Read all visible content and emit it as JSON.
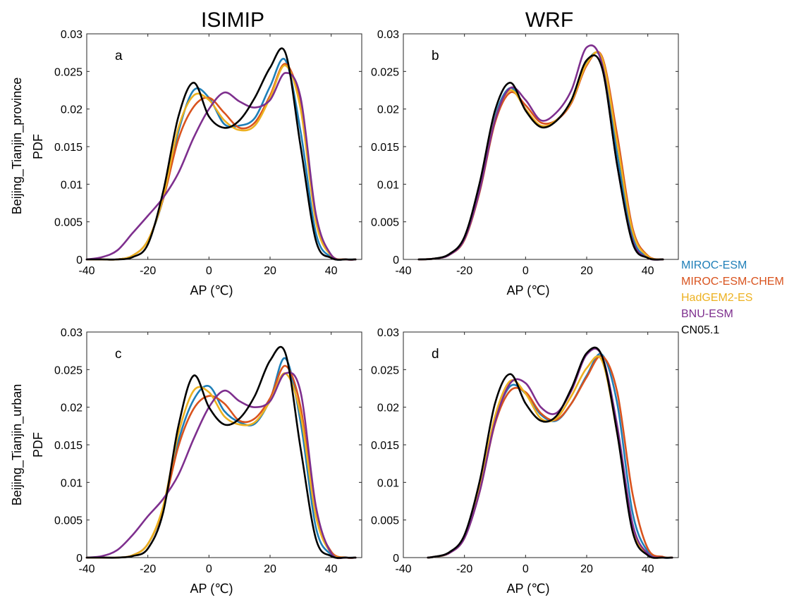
{
  "columns": [
    "ISIMIP",
    "WRF"
  ],
  "rows": [
    "Beijing_Tianjin_province",
    "Beijing_Tianjin_urban"
  ],
  "ylabel": "PDF",
  "xlabel": "AP (℃)",
  "x_ticks": [
    -40,
    -20,
    0,
    20,
    40
  ],
  "y_ticks": [
    "0",
    "0.005",
    "0.01",
    "0.015",
    "0.02",
    "0.025",
    "0.03"
  ],
  "legend": [
    {
      "name": "MIROC-ESM",
      "color": "#1f7fb8"
    },
    {
      "name": "MIROC-ESM-CHEM",
      "color": "#d9531e"
    },
    {
      "name": "HadGEM2-ES",
      "color": "#edb120"
    },
    {
      "name": "BNU-ESM",
      "color": "#7e2f8e"
    },
    {
      "name": "CN05.1",
      "color": "#000000"
    }
  ],
  "chart_data": [
    {
      "type": "line",
      "panel": "a",
      "xlim": [
        -40,
        50
      ],
      "ylim": [
        0,
        0.03
      ],
      "x": [
        -40,
        -35,
        -30,
        -25,
        -20,
        -15,
        -10,
        -5,
        0,
        5,
        10,
        15,
        20,
        25,
        30,
        35,
        40,
        45,
        48
      ],
      "series": [
        {
          "name": "MIROC-ESM",
          "color": "#1f7fb8",
          "values": [
            0,
            0,
            0,
            0.0005,
            0.0025,
            0.008,
            0.017,
            0.0225,
            0.0215,
            0.018,
            0.0178,
            0.0188,
            0.023,
            0.0265,
            0.017,
            0.0035,
            0.0003,
            0,
            0
          ]
        },
        {
          "name": "MIROC-ESM-CHEM",
          "color": "#d9531e",
          "values": [
            0,
            0,
            0,
            0.0005,
            0.0025,
            0.008,
            0.016,
            0.0203,
            0.0215,
            0.0195,
            0.0175,
            0.0182,
            0.0218,
            0.026,
            0.0205,
            0.0055,
            0.0006,
            0,
            0
          ]
        },
        {
          "name": "HadGEM2-ES",
          "color": "#edb120",
          "values": [
            0,
            0,
            0,
            0.0005,
            0.0025,
            0.0082,
            0.0175,
            0.0218,
            0.0212,
            0.0185,
            0.0172,
            0.0178,
            0.0215,
            0.0258,
            0.02,
            0.005,
            0.0005,
            0,
            0
          ]
        },
        {
          "name": "BNU-ESM",
          "color": "#7e2f8e",
          "values": [
            0,
            0.0003,
            0.0012,
            0.0035,
            0.0058,
            0.0082,
            0.0115,
            0.0162,
            0.02,
            0.0222,
            0.021,
            0.0202,
            0.0212,
            0.0248,
            0.0215,
            0.006,
            0.0006,
            0,
            0
          ]
        },
        {
          "name": "CN05.1",
          "color": "#000000",
          "values": [
            0,
            0,
            0,
            0.0003,
            0.002,
            0.009,
            0.019,
            0.0235,
            0.019,
            0.0175,
            0.0185,
            0.0215,
            0.0255,
            0.0275,
            0.015,
            0.0025,
            0.0002,
            0,
            0
          ]
        }
      ]
    },
    {
      "type": "line",
      "panel": "b",
      "xlim": [
        -40,
        50
      ],
      "ylim": [
        0,
        0.03
      ],
      "x": [
        -35,
        -30,
        -25,
        -20,
        -15,
        -10,
        -5,
        0,
        5,
        10,
        15,
        20,
        25,
        30,
        35,
        40,
        45
      ],
      "series": [
        {
          "name": "MIROC-ESM",
          "color": "#1f7fb8",
          "values": [
            0,
            0.0001,
            0.0006,
            0.0028,
            0.0095,
            0.019,
            0.0228,
            0.02,
            0.0177,
            0.0185,
            0.021,
            0.0262,
            0.0265,
            0.014,
            0.003,
            0.0003,
            0
          ]
        },
        {
          "name": "MIROC-ESM-CHEM",
          "color": "#d9531e",
          "values": [
            0,
            0.0001,
            0.0006,
            0.0026,
            0.009,
            0.0182,
            0.0222,
            0.0205,
            0.0182,
            0.0185,
            0.0208,
            0.0258,
            0.027,
            0.0165,
            0.0042,
            0.0005,
            0
          ]
        },
        {
          "name": "HadGEM2-ES",
          "color": "#edb120",
          "values": [
            0,
            0.0001,
            0.0006,
            0.0027,
            0.0092,
            0.0186,
            0.0225,
            0.02,
            0.0178,
            0.0185,
            0.021,
            0.026,
            0.0268,
            0.0155,
            0.0038,
            0.0004,
            0
          ]
        },
        {
          "name": "BNU-ESM",
          "color": "#7e2f8e",
          "values": [
            0,
            0.0001,
            0.0006,
            0.0027,
            0.0092,
            0.0185,
            0.0228,
            0.0212,
            0.0185,
            0.0195,
            0.0225,
            0.0282,
            0.026,
            0.0125,
            0.0025,
            0.0002,
            0
          ]
        },
        {
          "name": "CN05.1",
          "color": "#000000",
          "values": [
            0,
            0.0001,
            0.0007,
            0.003,
            0.0102,
            0.0198,
            0.0235,
            0.0198,
            0.0176,
            0.0184,
            0.0212,
            0.0265,
            0.0255,
            0.0125,
            0.0022,
            0.0002,
            0
          ]
        }
      ]
    },
    {
      "type": "line",
      "panel": "c",
      "xlim": [
        -40,
        50
      ],
      "ylim": [
        0,
        0.03
      ],
      "x": [
        -40,
        -35,
        -30,
        -25,
        -20,
        -15,
        -10,
        -5,
        0,
        5,
        10,
        15,
        20,
        25,
        30,
        35,
        40,
        45,
        48
      ],
      "series": [
        {
          "name": "MIROC-ESM",
          "color": "#1f7fb8",
          "values": [
            0,
            0,
            0,
            0.0003,
            0.0018,
            0.0065,
            0.0155,
            0.021,
            0.0228,
            0.0195,
            0.018,
            0.0178,
            0.021,
            0.0265,
            0.018,
            0.004,
            0.0004,
            0,
            0
          ]
        },
        {
          "name": "MIROC-ESM-CHEM",
          "color": "#d9531e",
          "values": [
            0,
            0,
            0,
            0.0003,
            0.0018,
            0.0065,
            0.0148,
            0.0198,
            0.0215,
            0.0205,
            0.0182,
            0.0185,
            0.0212,
            0.0255,
            0.02,
            0.006,
            0.0008,
            0,
            0
          ]
        },
        {
          "name": "HadGEM2-ES",
          "color": "#edb120",
          "values": [
            0,
            0,
            0,
            0.0003,
            0.0018,
            0.0068,
            0.0165,
            0.0222,
            0.022,
            0.0188,
            0.0177,
            0.018,
            0.0208,
            0.0245,
            0.019,
            0.0055,
            0.0006,
            0,
            0
          ]
        },
        {
          "name": "BNU-ESM",
          "color": "#7e2f8e",
          "values": [
            0,
            0.0002,
            0.001,
            0.003,
            0.0055,
            0.0078,
            0.011,
            0.0158,
            0.02,
            0.0222,
            0.0208,
            0.02,
            0.0208,
            0.0245,
            0.022,
            0.0068,
            0.0006,
            0,
            0
          ]
        },
        {
          "name": "CN05.1",
          "color": "#000000",
          "values": [
            0,
            0,
            0,
            0.0002,
            0.0012,
            0.006,
            0.0175,
            0.0242,
            0.02,
            0.0177,
            0.0185,
            0.0215,
            0.0262,
            0.0272,
            0.0145,
            0.0025,
            0.0002,
            0,
            0
          ]
        }
      ]
    },
    {
      "type": "line",
      "panel": "d",
      "xlim": [
        -40,
        50
      ],
      "ylim": [
        0,
        0.03
      ],
      "x": [
        -32,
        -30,
        -25,
        -20,
        -15,
        -10,
        -5,
        0,
        5,
        10,
        15,
        20,
        25,
        30,
        35,
        40,
        45,
        48
      ],
      "series": [
        {
          "name": "MIROC-ESM",
          "color": "#1f7fb8",
          "values": [
            0,
            0.0001,
            0.0006,
            0.0028,
            0.0092,
            0.0182,
            0.0228,
            0.0218,
            0.019,
            0.0182,
            0.0205,
            0.0242,
            0.027,
            0.0205,
            0.006,
            0.0008,
            0,
            0
          ]
        },
        {
          "name": "MIROC-ESM-CHEM",
          "color": "#d9531e",
          "values": [
            0,
            0.0001,
            0.0006,
            0.0026,
            0.0088,
            0.0178,
            0.0222,
            0.022,
            0.0192,
            0.0183,
            0.0205,
            0.024,
            0.0268,
            0.022,
            0.0085,
            0.0012,
            0.0001,
            0
          ]
        },
        {
          "name": "HadGEM2-ES",
          "color": "#edb120",
          "values": [
            0,
            0.0001,
            0.0006,
            0.0028,
            0.0094,
            0.0188,
            0.0235,
            0.0218,
            0.0185,
            0.0185,
            0.0215,
            0.0252,
            0.0262,
            0.0165,
            0.004,
            0.0004,
            0,
            0
          ]
        },
        {
          "name": "BNU-ESM",
          "color": "#7e2f8e",
          "values": [
            0,
            0.0001,
            0.0006,
            0.0026,
            0.0088,
            0.018,
            0.0232,
            0.0232,
            0.02,
            0.0192,
            0.0222,
            0.027,
            0.0268,
            0.0175,
            0.0045,
            0.0005,
            0,
            0
          ]
        },
        {
          "name": "CN05.1",
          "color": "#000000",
          "values": [
            0,
            0.0001,
            0.0007,
            0.003,
            0.0102,
            0.0205,
            0.0244,
            0.0205,
            0.0182,
            0.0188,
            0.0225,
            0.0272,
            0.0268,
            0.0165,
            0.0035,
            0.0003,
            0,
            0
          ]
        }
      ]
    }
  ]
}
